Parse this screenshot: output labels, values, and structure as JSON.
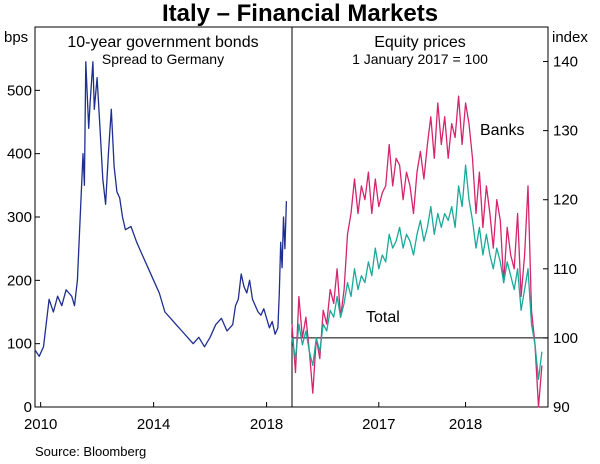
{
  "title": "Italy – Financial Markets",
  "source": "Source:   Bloomberg",
  "colors": {
    "bonds": "#1f2f8f",
    "banks": "#d6246e",
    "total": "#1aa99a",
    "axis": "#000000"
  },
  "chart_data": [
    {
      "type": "line",
      "title": "10-year government bonds",
      "subtitle": "Spread to Germany",
      "ylabel": "bps",
      "ylim": [
        0,
        600
      ],
      "yticks": [
        0,
        100,
        200,
        300,
        400,
        500
      ],
      "xlim": [
        2009.8,
        2018.9
      ],
      "xticks": [
        2010,
        2014,
        2018
      ],
      "xtick_labels": [
        "2010",
        "2014",
        "2018"
      ],
      "series": [
        {
          "name": "Spread to Germany",
          "x": [
            2009.8,
            2009.95,
            2010.1,
            2010.3,
            2010.45,
            2010.6,
            2010.75,
            2010.9,
            2011.0,
            2011.1,
            2011.2,
            2011.3,
            2011.4,
            2011.5,
            2011.55,
            2011.6,
            2011.7,
            2011.75,
            2011.85,
            2011.9,
            2012.0,
            2012.1,
            2012.2,
            2012.3,
            2012.4,
            2012.5,
            2012.6,
            2012.7,
            2012.8,
            2012.9,
            2013.0,
            2013.2,
            2013.4,
            2013.6,
            2013.8,
            2014.0,
            2014.2,
            2014.4,
            2014.6,
            2014.8,
            2015.0,
            2015.2,
            2015.4,
            2015.6,
            2015.8,
            2016.0,
            2016.2,
            2016.4,
            2016.6,
            2016.8,
            2016.9,
            2017.0,
            2017.1,
            2017.2,
            2017.3,
            2017.4,
            2017.5,
            2017.6,
            2017.7,
            2017.8,
            2017.9,
            2018.0,
            2018.1,
            2018.2,
            2018.3,
            2018.4,
            2018.45,
            2018.5,
            2018.55,
            2018.6,
            2018.65,
            2018.7
          ],
          "values": [
            90,
            80,
            95,
            170,
            150,
            175,
            160,
            185,
            180,
            175,
            160,
            200,
            300,
            400,
            350,
            545,
            440,
            480,
            545,
            470,
            520,
            440,
            360,
            320,
            400,
            470,
            380,
            340,
            330,
            300,
            280,
            285,
            260,
            240,
            220,
            200,
            180,
            150,
            140,
            130,
            120,
            110,
            100,
            110,
            95,
            110,
            130,
            140,
            120,
            130,
            160,
            170,
            210,
            190,
            180,
            200,
            170,
            160,
            150,
            145,
            155,
            140,
            125,
            135,
            115,
            125,
            180,
            260,
            220,
            300,
            250,
            325
          ]
        }
      ]
    },
    {
      "type": "line",
      "title": "Equity prices",
      "subtitle": "1 January 2017 = 100",
      "ylabel": "index",
      "ylim": [
        90,
        145
      ],
      "yticks": [
        90,
        100,
        110,
        120,
        130,
        140
      ],
      "xlim": [
        2016.0,
        2018.95
      ],
      "xticks": [
        2017,
        2018
      ],
      "xtick_labels": [
        "2017",
        "2018"
      ],
      "reference_line": 100,
      "series": [
        {
          "name": "Banks",
          "x": [
            2016.0,
            2016.04,
            2016.08,
            2016.12,
            2016.16,
            2016.2,
            2016.24,
            2016.28,
            2016.32,
            2016.36,
            2016.4,
            2016.44,
            2016.48,
            2016.52,
            2016.56,
            2016.6,
            2016.64,
            2016.68,
            2016.72,
            2016.76,
            2016.8,
            2016.84,
            2016.88,
            2016.92,
            2016.96,
            2017.0,
            2017.04,
            2017.08,
            2017.12,
            2017.16,
            2017.2,
            2017.24,
            2017.28,
            2017.32,
            2017.36,
            2017.4,
            2017.44,
            2017.48,
            2017.52,
            2017.56,
            2017.6,
            2017.64,
            2017.68,
            2017.72,
            2017.76,
            2017.8,
            2017.84,
            2017.88,
            2017.92,
            2017.96,
            2018.0,
            2018.04,
            2018.08,
            2018.12,
            2018.16,
            2018.2,
            2018.24,
            2018.28,
            2018.32,
            2018.36,
            2018.4,
            2018.44,
            2018.48,
            2018.52,
            2018.56,
            2018.6,
            2018.64,
            2018.68,
            2018.72,
            2018.76,
            2018.8,
            2018.84,
            2018.88
          ],
          "values": [
            102,
            95,
            106,
            100,
            103,
            98,
            92,
            100,
            97,
            104,
            102,
            107,
            105,
            110,
            103,
            107,
            115,
            118,
            123,
            118,
            122,
            120,
            124,
            118,
            123,
            119,
            121,
            122,
            128,
            122,
            126,
            125,
            120,
            124,
            122,
            118,
            124,
            127,
            123,
            128,
            132,
            126,
            134,
            128,
            132,
            126,
            131,
            129,
            135,
            128,
            134,
            131,
            126,
            118,
            124,
            116,
            122,
            118,
            113,
            120,
            117,
            108,
            116,
            112,
            110,
            118,
            106,
            112,
            122,
            104,
            99,
            90,
            96
          ]
        },
        {
          "name": "Total",
          "x": [
            2016.0,
            2016.04,
            2016.08,
            2016.12,
            2016.16,
            2016.2,
            2016.24,
            2016.28,
            2016.32,
            2016.36,
            2016.4,
            2016.44,
            2016.48,
            2016.52,
            2016.56,
            2016.6,
            2016.64,
            2016.68,
            2016.72,
            2016.76,
            2016.8,
            2016.84,
            2016.88,
            2016.92,
            2016.96,
            2017.0,
            2017.04,
            2017.08,
            2017.12,
            2017.16,
            2017.2,
            2017.24,
            2017.28,
            2017.32,
            2017.36,
            2017.4,
            2017.44,
            2017.48,
            2017.52,
            2017.56,
            2017.6,
            2017.64,
            2017.68,
            2017.72,
            2017.76,
            2017.8,
            2017.84,
            2017.88,
            2017.92,
            2017.96,
            2018.0,
            2018.04,
            2018.08,
            2018.12,
            2018.16,
            2018.2,
            2018.24,
            2018.28,
            2018.32,
            2018.36,
            2018.4,
            2018.44,
            2018.48,
            2018.52,
            2018.56,
            2018.6,
            2018.64,
            2018.68,
            2018.72,
            2018.76,
            2018.8,
            2018.84,
            2018.88
          ],
          "values": [
            100,
            97,
            102,
            99,
            101,
            98,
            96,
            100,
            98,
            102,
            101,
            104,
            103,
            106,
            103,
            105,
            108,
            106,
            110,
            107,
            109,
            108,
            111,
            109,
            113,
            110,
            112,
            111,
            115,
            113,
            114,
            116,
            113,
            115,
            114,
            112,
            115,
            117,
            114,
            116,
            119,
            115,
            118,
            116,
            118,
            117,
            119,
            116,
            122,
            119,
            125,
            120,
            117,
            113,
            116,
            112,
            115,
            112,
            110,
            113,
            111,
            108,
            111,
            109,
            107,
            110,
            104,
            107,
            110,
            102,
            99,
            94,
            98
          ]
        }
      ],
      "annotations": [
        "Banks",
        "Total"
      ]
    }
  ]
}
